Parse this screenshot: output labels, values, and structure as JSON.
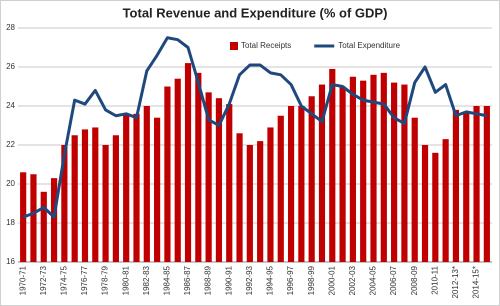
{
  "chart_data": {
    "type": "bar-line",
    "title": "Total Revenue and Expenditure (% of GDP)",
    "categories": [
      "1970-71",
      null,
      "1972-73",
      null,
      "1974-75",
      null,
      "1976-77",
      null,
      "1978-79",
      null,
      "1980-81",
      null,
      "1982-83",
      null,
      "1984-85",
      null,
      "1986-87",
      null,
      "1988-89",
      null,
      "1990-91",
      null,
      "1992-93",
      null,
      "1994-95",
      null,
      "1996-97",
      null,
      "1998-99",
      null,
      "2000-01",
      null,
      "2002-03",
      null,
      "2004-05",
      null,
      "2006-07",
      null,
      "2008-09",
      null,
      "2010-11",
      null,
      "2012-13*",
      null,
      "2014-15*",
      null
    ],
    "series": [
      {
        "name": "Total Receipts",
        "type": "bar",
        "color": "#c00000",
        "values": [
          20.6,
          20.5,
          19.6,
          20.3,
          22.0,
          22.5,
          22.8,
          22.9,
          22.0,
          22.5,
          23.6,
          23.6,
          24.0,
          23.4,
          25.0,
          25.4,
          26.2,
          25.7,
          24.7,
          24.4,
          24.1,
          22.6,
          22.0,
          22.2,
          22.9,
          23.5,
          24.0,
          24.0,
          24.5,
          25.1,
          25.9,
          25.0,
          25.5,
          25.3,
          25.6,
          25.7,
          25.2,
          25.1,
          23.4,
          22.0,
          21.6,
          22.3,
          23.8,
          23.7,
          24.0,
          24.0
        ]
      },
      {
        "name": "Total Expenditure",
        "type": "line",
        "color": "#1f497d",
        "values": [
          18.3,
          18.5,
          18.8,
          18.3,
          21.5,
          24.3,
          24.1,
          24.8,
          23.8,
          23.5,
          23.6,
          23.4,
          25.8,
          26.6,
          27.5,
          27.4,
          27.0,
          25.2,
          23.3,
          23.0,
          24.1,
          25.6,
          26.1,
          26.1,
          25.7,
          25.6,
          25.1,
          24.0,
          23.6,
          23.2,
          25.1,
          25.0,
          24.6,
          24.3,
          24.2,
          24.1,
          23.4,
          23.1,
          25.2,
          26.0,
          24.7,
          25.1,
          23.5,
          23.7,
          23.6,
          23.5
        ]
      }
    ],
    "ylim": [
      16,
      28
    ],
    "yticks": [
      16,
      18,
      20,
      22,
      24,
      26,
      28
    ],
    "grid": true,
    "legend": "top"
  }
}
